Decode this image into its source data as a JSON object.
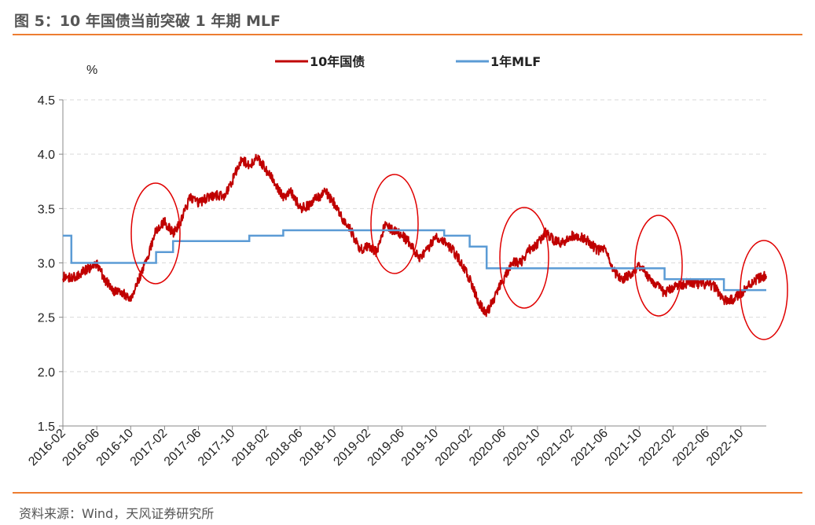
{
  "figure": {
    "title": "图 5：10 年国债当前突破 1 年期 MLF",
    "source": "资料来源：Wind，天风证券研究所"
  },
  "colors": {
    "cgb10": "#C00000",
    "mlf": "#5B9BD5",
    "accent_rule": "#ED7D31",
    "highlight_circle": "#E00000",
    "grid": "#D9D9D9"
  },
  "chart_data": {
    "type": "line",
    "ylabel": "%",
    "ylim": [
      1.5,
      4.5
    ],
    "yticks": [
      "1.5",
      "2.0",
      "2.5",
      "3.0",
      "3.5",
      "4.0",
      "4.5"
    ],
    "x_range": [
      "2016-02",
      "2023-01"
    ],
    "x_tick_labels": [
      "2016-02",
      "2016-06",
      "2016-10",
      "2017-02",
      "2017-06",
      "2017-10",
      "2018-02",
      "2018-06",
      "2018-10",
      "2019-02",
      "2019-06",
      "2019-10",
      "2020-02",
      "2020-06",
      "2020-10",
      "2021-02",
      "2021-06",
      "2021-10",
      "2022-02",
      "2022-06",
      "2022-10"
    ],
    "grid": "horizontal-dashed",
    "legend_position": "top-center",
    "series": [
      {
        "name": "10年国债",
        "color": "#C00000",
        "points": [
          [
            "2016-02",
            2.87
          ],
          [
            "2016-03",
            2.86
          ],
          [
            "2016-04",
            2.9
          ],
          [
            "2016-05",
            2.95
          ],
          [
            "2016-06",
            2.99
          ],
          [
            "2016-07",
            2.84
          ],
          [
            "2016-08",
            2.74
          ],
          [
            "2016-09",
            2.72
          ],
          [
            "2016-10",
            2.68
          ],
          [
            "2016-11",
            2.85
          ],
          [
            "2016-12",
            3.06
          ],
          [
            "2017-01",
            3.3
          ],
          [
            "2017-02",
            3.38
          ],
          [
            "2017-03",
            3.27
          ],
          [
            "2017-04",
            3.4
          ],
          [
            "2017-05",
            3.6
          ],
          [
            "2017-06",
            3.55
          ],
          [
            "2017-07",
            3.6
          ],
          [
            "2017-08",
            3.62
          ],
          [
            "2017-09",
            3.62
          ],
          [
            "2017-10",
            3.75
          ],
          [
            "2017-11",
            3.95
          ],
          [
            "2017-12",
            3.9
          ],
          [
            "2018-01",
            3.97
          ],
          [
            "2018-02",
            3.85
          ],
          [
            "2018-03",
            3.75
          ],
          [
            "2018-04",
            3.6
          ],
          [
            "2018-05",
            3.65
          ],
          [
            "2018-06",
            3.5
          ],
          [
            "2018-07",
            3.53
          ],
          [
            "2018-08",
            3.6
          ],
          [
            "2018-09",
            3.65
          ],
          [
            "2018-10",
            3.55
          ],
          [
            "2018-11",
            3.4
          ],
          [
            "2018-12",
            3.3
          ],
          [
            "2019-01",
            3.12
          ],
          [
            "2019-02",
            3.15
          ],
          [
            "2019-03",
            3.1
          ],
          [
            "2019-04",
            3.35
          ],
          [
            "2019-05",
            3.3
          ],
          [
            "2019-06",
            3.25
          ],
          [
            "2019-07",
            3.18
          ],
          [
            "2019-08",
            3.05
          ],
          [
            "2019-09",
            3.12
          ],
          [
            "2019-10",
            3.25
          ],
          [
            "2019-11",
            3.2
          ],
          [
            "2019-12",
            3.12
          ],
          [
            "2020-01",
            3.0
          ],
          [
            "2020-02",
            2.85
          ],
          [
            "2020-03",
            2.65
          ],
          [
            "2020-04",
            2.53
          ],
          [
            "2020-05",
            2.7
          ],
          [
            "2020-06",
            2.85
          ],
          [
            "2020-07",
            3.0
          ],
          [
            "2020-08",
            3.0
          ],
          [
            "2020-09",
            3.12
          ],
          [
            "2020-10",
            3.18
          ],
          [
            "2020-11",
            3.28
          ],
          [
            "2020-12",
            3.2
          ],
          [
            "2021-01",
            3.18
          ],
          [
            "2021-02",
            3.25
          ],
          [
            "2021-03",
            3.25
          ],
          [
            "2021-04",
            3.2
          ],
          [
            "2021-05",
            3.12
          ],
          [
            "2021-06",
            3.12
          ],
          [
            "2021-07",
            2.92
          ],
          [
            "2021-08",
            2.85
          ],
          [
            "2021-09",
            2.9
          ],
          [
            "2021-10",
            2.98
          ],
          [
            "2021-11",
            2.88
          ],
          [
            "2021-12",
            2.8
          ],
          [
            "2022-01",
            2.72
          ],
          [
            "2022-02",
            2.78
          ],
          [
            "2022-03",
            2.8
          ],
          [
            "2022-04",
            2.82
          ],
          [
            "2022-05",
            2.8
          ],
          [
            "2022-06",
            2.8
          ],
          [
            "2022-07",
            2.78
          ],
          [
            "2022-08",
            2.65
          ],
          [
            "2022-09",
            2.66
          ],
          [
            "2022-10",
            2.72
          ],
          [
            "2022-11",
            2.8
          ],
          [
            "2022-12",
            2.86
          ],
          [
            "2023-01",
            2.88
          ]
        ]
      },
      {
        "name": "1年MLF",
        "color": "#5B9BD5",
        "step": true,
        "points": [
          [
            "2016-02",
            3.25
          ],
          [
            "2016-03",
            3.0
          ],
          [
            "2017-01",
            3.1
          ],
          [
            "2017-03",
            3.2
          ],
          [
            "2017-12",
            3.25
          ],
          [
            "2018-04",
            3.3
          ],
          [
            "2019-11",
            3.25
          ],
          [
            "2020-02",
            3.15
          ],
          [
            "2020-04",
            2.95
          ],
          [
            "2022-01",
            2.85
          ],
          [
            "2022-08",
            2.75
          ],
          [
            "2023-01",
            2.75
          ]
        ]
      }
    ]
  }
}
